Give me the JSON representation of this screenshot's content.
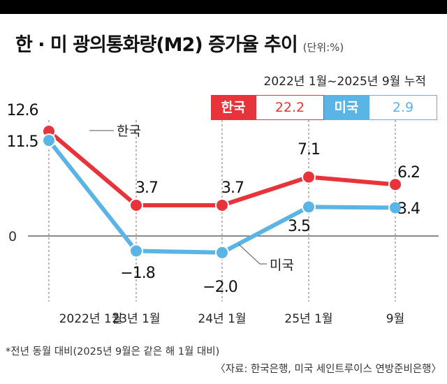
{
  "title": "한 · 미 광의통화량(M2) 증가율 추이",
  "unit": "(단위:%)",
  "cumulative": {
    "caption": "2022년 1월~2025년 9월 누적",
    "korea": {
      "name": "한국",
      "value": "22.2"
    },
    "us": {
      "name": "미국",
      "value": "2.9"
    }
  },
  "colors": {
    "korea": "#e8333a",
    "us": "#5ab4e5"
  },
  "chart_data": {
    "type": "line",
    "categories": [
      "2022년 1월",
      "23년 1월",
      "24년 1월",
      "25년 1월",
      "9월"
    ],
    "series": [
      {
        "name": "한국",
        "values": [
          12.6,
          3.7,
          3.7,
          7.1,
          6.2
        ],
        "labels": [
          "12.6",
          "3.7",
          "3.7",
          "7.1",
          "6.2"
        ]
      },
      {
        "name": "미국",
        "values": [
          11.5,
          -1.8,
          -2.0,
          3.5,
          3.4
        ],
        "labels": [
          "11.5",
          "−1.8",
          "−2.0",
          "3.5",
          "3.4"
        ]
      }
    ],
    "zero_label": "0",
    "ylim": [
      -3,
      14
    ]
  },
  "footnote": "*전년 동월 대비(2025년 9월은 같은 해 1월 대비)",
  "source": "〈자료: 한국은행, 미국 세인트루이스 연방준비은행〉"
}
